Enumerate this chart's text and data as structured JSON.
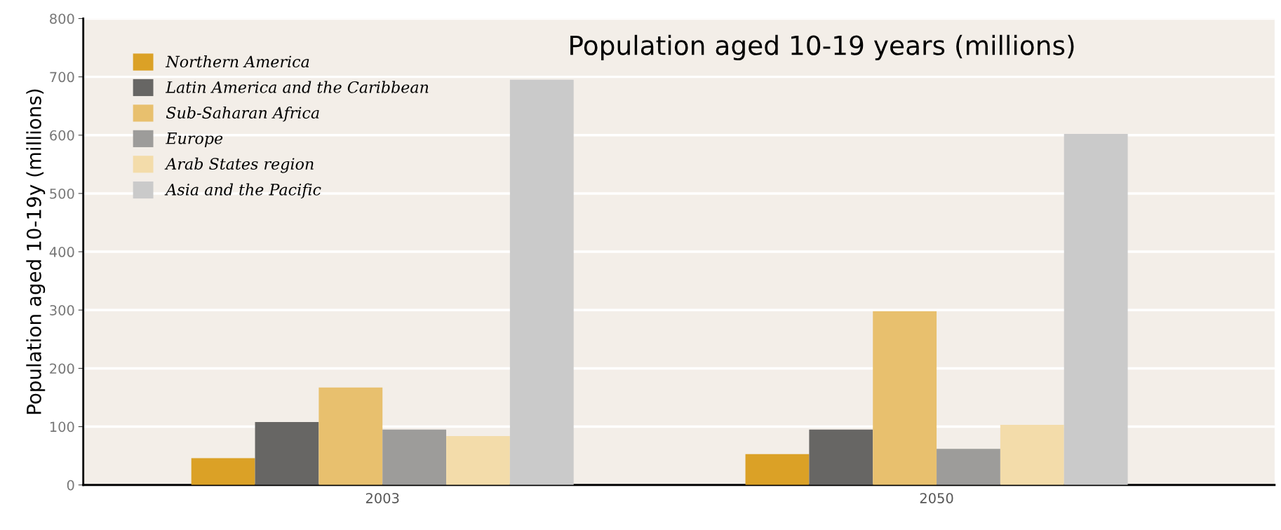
{
  "chart_data": {
    "type": "bar",
    "title": "Population aged 10-19 years (millions)",
    "ylabel": "Population aged 10-19y (millions)",
    "categories": [
      "2003",
      "2050"
    ],
    "series": [
      {
        "name": "Northern America",
        "color": "#dba126",
        "values": [
          46,
          53
        ]
      },
      {
        "name": "Latin America and the Caribbean",
        "color": "#676664",
        "values": [
          108,
          95
        ]
      },
      {
        "name": "Sub-Saharan Africa",
        "color": "#e8c06e",
        "values": [
          167,
          298
        ]
      },
      {
        "name": "Europe",
        "color": "#9d9c9a",
        "values": [
          95,
          62
        ]
      },
      {
        "name": "Arab States region",
        "color": "#f3dcaa",
        "values": [
          84,
          103
        ]
      },
      {
        "name": "Asia and the Pacific",
        "color": "#cacaca",
        "values": [
          695,
          602
        ]
      }
    ],
    "ylim": [
      0,
      800
    ],
    "yticks": [
      0,
      100,
      200,
      300,
      400,
      500,
      600,
      700,
      800
    ],
    "grid": "y",
    "legend": "top left"
  }
}
